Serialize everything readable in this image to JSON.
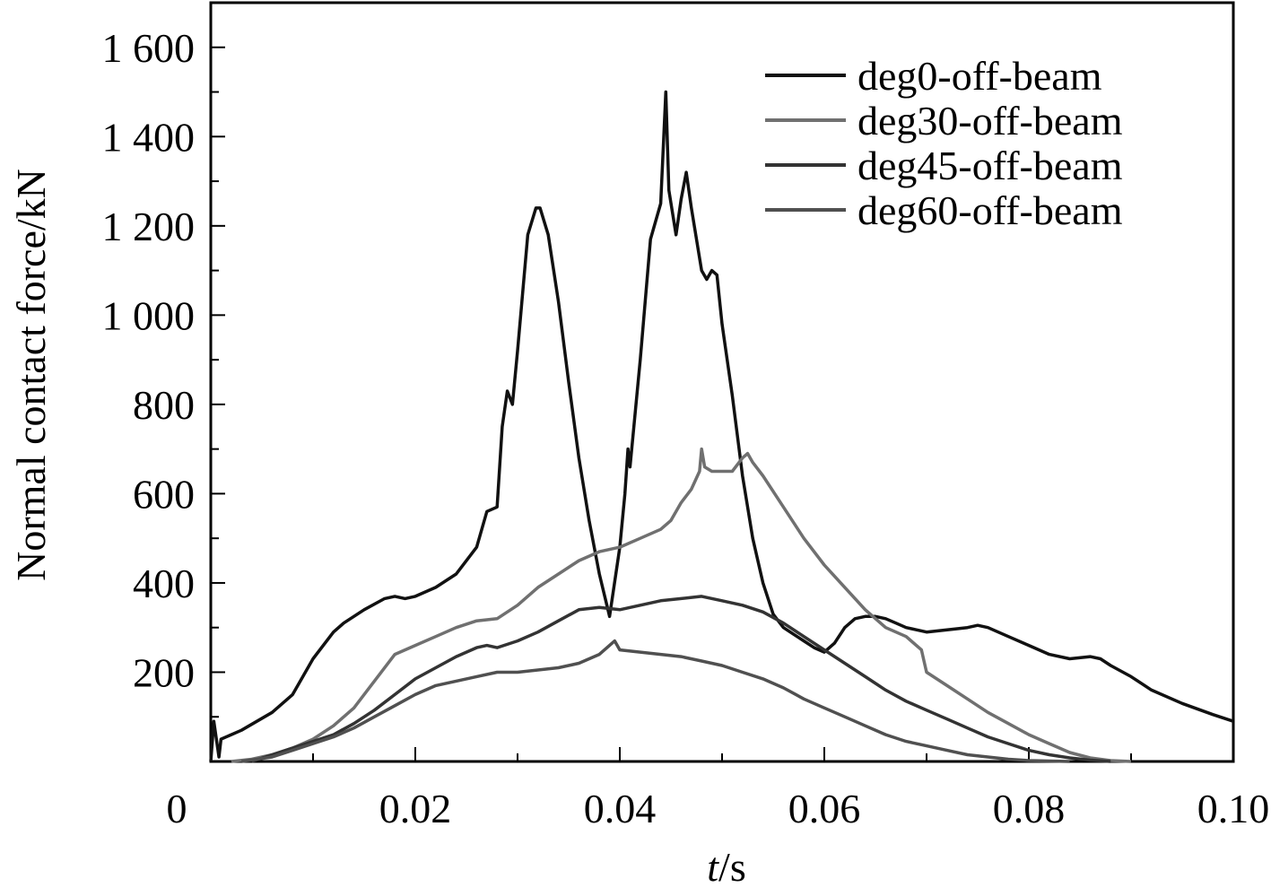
{
  "chart_data": {
    "type": "line",
    "title": "",
    "xlabel": "t/s",
    "xlabel_italic": "t",
    "xlabel_rest": "/s",
    "ylabel": "Normal contact force/kN",
    "xlim": [
      0,
      0.1
    ],
    "ylim": [
      0,
      1700
    ],
    "x_ticks": [
      0,
      0.02,
      0.04,
      0.06,
      0.08,
      0.1
    ],
    "x_tick_labels": [
      "0",
      "0.02",
      "0.04",
      "0.06",
      "0.08",
      "0.10"
    ],
    "y_ticks": [
      200,
      400,
      600,
      800,
      1000,
      1200,
      1400,
      1600
    ],
    "y_tick_labels": [
      "200",
      "400",
      "600",
      "800",
      "1 000",
      "1 200",
      "1 400",
      "1 600"
    ],
    "grid": false,
    "legend_position": "top-right",
    "series": [
      {
        "name": "deg0-off-beam",
        "color": "#111111",
        "x": [
          0,
          0.0003,
          0.0008,
          0.001,
          0.003,
          0.006,
          0.008,
          0.01,
          0.012,
          0.013,
          0.015,
          0.017,
          0.018,
          0.019,
          0.02,
          0.022,
          0.024,
          0.026,
          0.027,
          0.028,
          0.0285,
          0.029,
          0.0295,
          0.03,
          0.031,
          0.0318,
          0.0322,
          0.033,
          0.034,
          0.035,
          0.036,
          0.037,
          0.038,
          0.039,
          0.04,
          0.0405,
          0.0408,
          0.041,
          0.042,
          0.043,
          0.044,
          0.0445,
          0.0448,
          0.0455,
          0.046,
          0.0465,
          0.047,
          0.048,
          0.0485,
          0.049,
          0.0495,
          0.05,
          0.051,
          0.052,
          0.053,
          0.054,
          0.055,
          0.056,
          0.057,
          0.058,
          0.059,
          0.06,
          0.061,
          0.062,
          0.063,
          0.064,
          0.065,
          0.066,
          0.067,
          0.068,
          0.069,
          0.07,
          0.072,
          0.074,
          0.075,
          0.076,
          0.078,
          0.08,
          0.082,
          0.084,
          0.086,
          0.087,
          0.088,
          0.09,
          0.092,
          0.095,
          0.098,
          0.1
        ],
        "y": [
          0,
          90,
          10,
          50,
          70,
          110,
          150,
          230,
          290,
          310,
          340,
          365,
          370,
          365,
          370,
          390,
          420,
          480,
          560,
          570,
          750,
          830,
          800,
          920,
          1180,
          1240,
          1240,
          1180,
          1030,
          850,
          680,
          540,
          420,
          325,
          480,
          600,
          700,
          660,
          900,
          1170,
          1250,
          1500,
          1280,
          1180,
          1260,
          1320,
          1240,
          1100,
          1080,
          1100,
          1090,
          980,
          820,
          640,
          500,
          400,
          330,
          300,
          285,
          270,
          255,
          245,
          265,
          300,
          320,
          325,
          325,
          320,
          310,
          300,
          295,
          290,
          295,
          300,
          305,
          300,
          280,
          260,
          240,
          230,
          235,
          230,
          215,
          190,
          160,
          130,
          105,
          90
        ]
      },
      {
        "name": "deg30-off-beam",
        "color": "#707070",
        "x": [
          0.002,
          0.004,
          0.006,
          0.008,
          0.01,
          0.012,
          0.014,
          0.016,
          0.018,
          0.02,
          0.022,
          0.024,
          0.026,
          0.028,
          0.03,
          0.032,
          0.034,
          0.036,
          0.038,
          0.04,
          0.042,
          0.044,
          0.045,
          0.046,
          0.047,
          0.0478,
          0.048,
          0.0483,
          0.049,
          0.05,
          0.051,
          0.052,
          0.0525,
          0.053,
          0.054,
          0.056,
          0.058,
          0.06,
          0.062,
          0.064,
          0.066,
          0.068,
          0.0695,
          0.0698,
          0.07,
          0.072,
          0.074,
          0.076,
          0.078,
          0.08,
          0.082,
          0.084,
          0.086,
          0.088,
          0.09
        ],
        "y": [
          0,
          5,
          15,
          30,
          50,
          80,
          120,
          180,
          240,
          260,
          280,
          300,
          315,
          320,
          350,
          390,
          420,
          450,
          470,
          480,
          500,
          520,
          540,
          580,
          610,
          650,
          700,
          660,
          650,
          650,
          650,
          680,
          690,
          670,
          640,
          570,
          500,
          440,
          390,
          340,
          300,
          280,
          250,
          220,
          200,
          170,
          140,
          110,
          85,
          60,
          40,
          20,
          8,
          2,
          0
        ]
      },
      {
        "name": "deg45-off-beam",
        "color": "#333333",
        "x": [
          0.004,
          0.006,
          0.008,
          0.01,
          0.012,
          0.014,
          0.016,
          0.018,
          0.02,
          0.022,
          0.024,
          0.026,
          0.027,
          0.028,
          0.03,
          0.032,
          0.034,
          0.036,
          0.038,
          0.04,
          0.042,
          0.044,
          0.046,
          0.048,
          0.05,
          0.052,
          0.054,
          0.056,
          0.058,
          0.06,
          0.062,
          0.064,
          0.066,
          0.068,
          0.07,
          0.072,
          0.074,
          0.076,
          0.078,
          0.08,
          0.082,
          0.084,
          0.086,
          0.088
        ],
        "y": [
          0,
          15,
          30,
          45,
          60,
          85,
          115,
          150,
          185,
          210,
          235,
          255,
          260,
          255,
          270,
          290,
          315,
          340,
          345,
          340,
          350,
          360,
          365,
          370,
          360,
          350,
          335,
          310,
          280,
          250,
          220,
          190,
          160,
          135,
          115,
          95,
          75,
          55,
          40,
          25,
          15,
          8,
          3,
          0
        ]
      },
      {
        "name": "deg60-off-beam",
        "color": "#505050",
        "x": [
          0.003,
          0.006,
          0.008,
          0.01,
          0.012,
          0.014,
          0.016,
          0.018,
          0.02,
          0.022,
          0.024,
          0.026,
          0.028,
          0.03,
          0.032,
          0.034,
          0.036,
          0.038,
          0.0395,
          0.04,
          0.042,
          0.044,
          0.046,
          0.048,
          0.05,
          0.052,
          0.054,
          0.056,
          0.058,
          0.06,
          0.062,
          0.064,
          0.066,
          0.068,
          0.07,
          0.072,
          0.074,
          0.076,
          0.078,
          0.08,
          0.082,
          0.084
        ],
        "y": [
          0,
          10,
          25,
          40,
          55,
          75,
          100,
          125,
          150,
          170,
          180,
          190,
          200,
          200,
          205,
          210,
          220,
          240,
          270,
          250,
          245,
          240,
          235,
          225,
          215,
          200,
          185,
          165,
          140,
          120,
          100,
          80,
          60,
          45,
          35,
          25,
          15,
          10,
          5,
          2,
          1,
          0
        ]
      }
    ]
  }
}
